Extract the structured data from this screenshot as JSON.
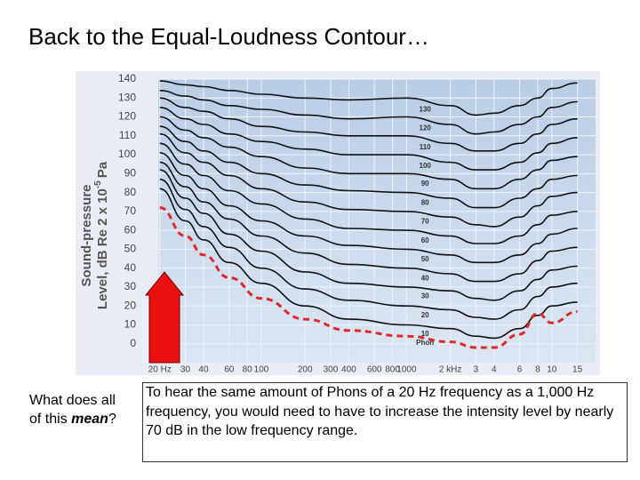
{
  "title": "Back to the Equal-Loudness Contour…",
  "side_note": {
    "text": "What does all of this",
    "emphasis": "mean",
    "end": "?"
  },
  "caption": "To hear the same amount of Phons of a 20 Hz frequency as a 1,000 Hz frequency, you would need to have to increase the intensity level by nearly 70 dB in the low frequency range.",
  "chart_data": {
    "type": "line",
    "y_label": [
      "Sound-pressure",
      "Level, dB Re 2 x 10",
      "-5",
      "Pa"
    ],
    "unit_label": "Phon",
    "log_x": true,
    "grid": true,
    "xlim": [
      19.5,
      20000
    ],
    "ylim": [
      -10,
      140
    ],
    "xticks": [
      {
        "value": 20,
        "label": "20 Hz"
      },
      30,
      40,
      60,
      80,
      100,
      200,
      300,
      400,
      600,
      800,
      1000,
      {
        "value": 2000,
        "label": "2 kHz"
      },
      {
        "value": 3000,
        "label": "3"
      },
      {
        "value": 4000,
        "label": "4"
      },
      {
        "value": 6000,
        "label": "6"
      },
      {
        "value": 8000,
        "label": "8"
      },
      {
        "value": 10000,
        "label": "10"
      },
      {
        "value": 15000,
        "label": "15"
      }
    ],
    "yticks": [
      0,
      10,
      20,
      30,
      40,
      50,
      60,
      70,
      80,
      90,
      100,
      110,
      120,
      130,
      140
    ],
    "x": [
      20,
      30,
      40,
      60,
      100,
      200,
      400,
      1000,
      2000,
      3000,
      4000,
      6000,
      8000,
      10000,
      15000
    ],
    "series": [
      {
        "name": "10",
        "color": "#111111",
        "values": [
          82,
          65,
          55,
          43,
          32,
          20,
          13,
          10,
          8,
          4,
          3,
          8,
          15,
          20,
          22
        ]
      },
      {
        "name": "20",
        "color": "#111111",
        "values": [
          87,
          71,
          62,
          51,
          40,
          29,
          23,
          20,
          18,
          14,
          13,
          18,
          25,
          30,
          32
        ]
      },
      {
        "name": "30",
        "color": "#111111",
        "values": [
          92,
          77,
          69,
          58,
          49,
          38,
          32,
          30,
          28,
          24,
          23,
          28,
          34,
          39,
          41
        ]
      },
      {
        "name": "40",
        "color": "#111111",
        "values": [
          96,
          83,
          75,
          66,
          57,
          48,
          42,
          40,
          37,
          33,
          33,
          37,
          44,
          49,
          51
        ]
      },
      {
        "name": "50",
        "color": "#111111",
        "values": [
          101,
          89,
          82,
          73,
          65,
          57,
          52,
          50,
          47,
          43,
          43,
          47,
          53,
          58,
          61
        ]
      },
      {
        "name": "60",
        "color": "#111111",
        "values": [
          106,
          95,
          89,
          81,
          74,
          66,
          61,
          60,
          57,
          53,
          53,
          57,
          63,
          68,
          70
        ]
      },
      {
        "name": "70",
        "color": "#111111",
        "values": [
          111,
          101,
          96,
          89,
          82,
          75,
          71,
          70,
          67,
          63,
          62,
          67,
          73,
          78,
          80
        ]
      },
      {
        "name": "80",
        "color": "#111111",
        "values": [
          115,
          107,
          102,
          96,
          90,
          84,
          81,
          80,
          77,
          72,
          72,
          77,
          82,
          87,
          89
        ]
      },
      {
        "name": "90",
        "color": "#111111",
        "values": [
          120,
          113,
          109,
          104,
          99,
          93,
          90,
          90,
          87,
          82,
          82,
          87,
          92,
          97,
          99
        ]
      },
      {
        "name": "100",
        "color": "#111111",
        "values": [
          125,
          119,
          116,
          111,
          107,
          103,
          100,
          100,
          96,
          92,
          92,
          96,
          101,
          106,
          109
        ]
      },
      {
        "name": "110",
        "color": "#111111",
        "values": [
          130,
          125,
          123,
          119,
          115,
          112,
          110,
          110,
          106,
          102,
          102,
          106,
          111,
          116,
          119
        ]
      },
      {
        "name": "120",
        "color": "#111111",
        "values": [
          134,
          131,
          129,
          126,
          124,
          121,
          119,
          120,
          116,
          111,
          112,
          116,
          120,
          125,
          128
        ]
      },
      {
        "name": "130",
        "color": "#111111",
        "values": [
          139,
          137,
          136,
          134,
          132,
          130,
          129,
          130,
          126,
          121,
          122,
          126,
          130,
          135,
          138
        ]
      },
      {
        "color": "#e02a2a",
        "dashed": true,
        "values": [
          72,
          57,
          47,
          35,
          24,
          13,
          7,
          4,
          1,
          -2,
          -2,
          5,
          16,
          11,
          17
        ]
      }
    ]
  }
}
